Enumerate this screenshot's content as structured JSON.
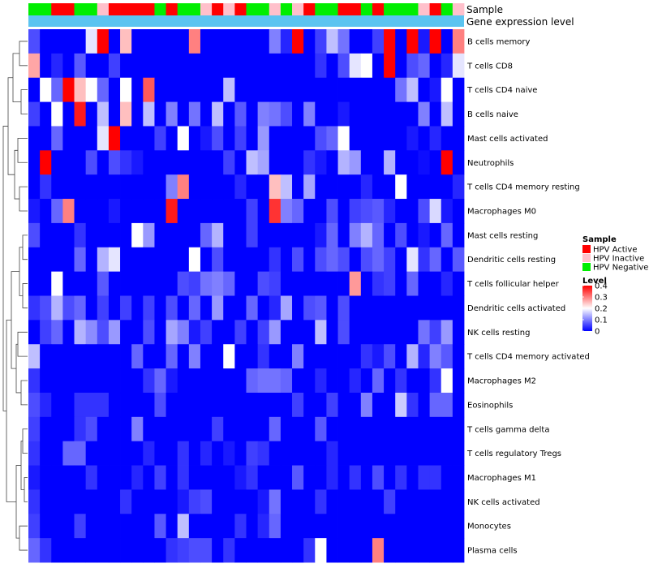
{
  "chart_data": {
    "type": "heatmap",
    "annotations": [
      {
        "label": "Sample",
        "values": [
          "N",
          "N",
          "A",
          "A",
          "N",
          "N",
          "I",
          "A",
          "A",
          "A",
          "A",
          "N",
          "A",
          "N",
          "N",
          "I",
          "A",
          "I",
          "A",
          "N",
          "N",
          "I",
          "N",
          "I",
          "A",
          "N",
          "N",
          "A",
          "A",
          "N",
          "A",
          "N",
          "N",
          "N",
          "I",
          "A",
          "N",
          "I"
        ]
      },
      {
        "label": "Gene expression level",
        "color": "#5bc4f0"
      }
    ],
    "rows": [
      "B cells memory",
      "T cells CD8",
      "T cells CD4 naive",
      "B cells naive",
      "Mast cells activated",
      "Neutrophils",
      "T cells CD4 memory resting",
      "Macrophages M0",
      "Mast cells resting",
      "Dendritic cells resting",
      "T cells follicular helper",
      "Dendritic cells activated",
      "NK cells resting",
      "T cells CD4 memory activated",
      "Macrophages M2",
      "Eosinophils",
      "T cells gamma delta",
      "T cells regulatory  Tregs",
      "Macrophages M1",
      "NK cells activated",
      "Monocytes",
      "Plasma cells"
    ],
    "values": [
      [
        0.06,
        0,
        0,
        0,
        0,
        0.18,
        0.4,
        0,
        0.25,
        0,
        0,
        0,
        0,
        0,
        0.3,
        0,
        0,
        0,
        0,
        0,
        0,
        0.1,
        0.03,
        0.4,
        0,
        0.05,
        0.15,
        0.09,
        0,
        0,
        0.05,
        0.4,
        0,
        0.4,
        0.02,
        0.4,
        0,
        0.3
      ],
      [
        0.27,
        0,
        0.03,
        0,
        0.07,
        0,
        0,
        0.05,
        0,
        0,
        0,
        0,
        0,
        0,
        0,
        0,
        0,
        0,
        0,
        0,
        0,
        0,
        0,
        0,
        0,
        0.04,
        0,
        0.06,
        0.18,
        0.2,
        0,
        0.4,
        0,
        0.06,
        0.08,
        0,
        0.03,
        0.18
      ],
      [
        0,
        0.2,
        0.08,
        0.4,
        0.25,
        0.2,
        0.08,
        0,
        0.2,
        0,
        0.33,
        0,
        0,
        0,
        0,
        0,
        0,
        0.15,
        0,
        0,
        0,
        0,
        0,
        0,
        0,
        0,
        0,
        0,
        0,
        0,
        0,
        0,
        0.09,
        0.15,
        0,
        0.02,
        0.2,
        0
      ],
      [
        0.05,
        0,
        0.2,
        0,
        0.38,
        0,
        0.15,
        0,
        0.25,
        0,
        0.15,
        0,
        0.1,
        0,
        0.09,
        0,
        0.15,
        0,
        0.07,
        0,
        0.1,
        0.09,
        0.06,
        0,
        0.1,
        0,
        0,
        0.02,
        0,
        0,
        0,
        0,
        0,
        0,
        0.1,
        0,
        0.15,
        0
      ],
      [
        0,
        0,
        0.08,
        0,
        0,
        0,
        0.18,
        0.4,
        0,
        0,
        0,
        0.05,
        0,
        0.2,
        0,
        0.02,
        0.06,
        0,
        0.05,
        0,
        0.12,
        0,
        0,
        0,
        0,
        0.06,
        0.08,
        0.2,
        0,
        0,
        0,
        0,
        0,
        0.02,
        0,
        0.03,
        0,
        0
      ],
      [
        0,
        0.4,
        0,
        0,
        0,
        0.06,
        0,
        0.06,
        0.04,
        0.02,
        0,
        0,
        0,
        0,
        0,
        0,
        0,
        0.05,
        0,
        0.15,
        0.13,
        0,
        0,
        0,
        0.04,
        0.02,
        0,
        0.14,
        0.12,
        0,
        0,
        0.14,
        0,
        0,
        0.01,
        0,
        0.4,
        0
      ],
      [
        0,
        0.04,
        0,
        0,
        0,
        0,
        0,
        0,
        0,
        0,
        0,
        0,
        0.1,
        0.3,
        0,
        0,
        0,
        0,
        0.03,
        0,
        0,
        0.25,
        0.15,
        0,
        0.13,
        0,
        0,
        0,
        0,
        0.03,
        0,
        0,
        0.2,
        0,
        0,
        0,
        0,
        0.03
      ],
      [
        0.02,
        0,
        0.08,
        0.3,
        0,
        0,
        0,
        0.02,
        0,
        0,
        0,
        0,
        0.38,
        0,
        0,
        0,
        0,
        0,
        0,
        0.05,
        0,
        0.36,
        0.1,
        0.08,
        0,
        0,
        0.06,
        0,
        0.05,
        0.06,
        0.07,
        0.03,
        0,
        0,
        0.06,
        0.17,
        0.02,
        0
      ],
      [
        0.06,
        0,
        0,
        0,
        0.04,
        0,
        0,
        0,
        0,
        0.2,
        0.12,
        0,
        0,
        0,
        0,
        0.08,
        0.14,
        0,
        0,
        0.05,
        0,
        0,
        0,
        0,
        0,
        0.02,
        0.08,
        0,
        0.1,
        0.14,
        0.08,
        0,
        0.06,
        0,
        0.02,
        0,
        0.08,
        0
      ],
      [
        0,
        0,
        0,
        0,
        0.08,
        0,
        0.14,
        0.18,
        0,
        0,
        0,
        0,
        0,
        0,
        0.2,
        0,
        0.06,
        0,
        0,
        0,
        0,
        0.04,
        0,
        0.06,
        0,
        0.06,
        0.08,
        0.06,
        0,
        0.06,
        0.08,
        0.05,
        0,
        0.18,
        0.04,
        0.08,
        0,
        0.07
      ],
      [
        0,
        0,
        0.2,
        0,
        0,
        0,
        0.07,
        0,
        0,
        0,
        0,
        0,
        0,
        0.06,
        0.05,
        0.09,
        0.1,
        0.08,
        0,
        0,
        0.06,
        0.05,
        0,
        0,
        0,
        0,
        0,
        0,
        0.28,
        0,
        0.04,
        0.05,
        0,
        0.08,
        0,
        0,
        0.03,
        0
      ],
      [
        0.04,
        0.06,
        0.14,
        0.06,
        0.08,
        0,
        0.05,
        0,
        0.05,
        0,
        0.05,
        0,
        0.06,
        0,
        0.08,
        0,
        0.12,
        0,
        0,
        0.08,
        0,
        0.03,
        0.13,
        0,
        0.06,
        0.07,
        0,
        0.06,
        0,
        0,
        0,
        0,
        0,
        0,
        0,
        0,
        0,
        0
      ],
      [
        0,
        0.05,
        0.08,
        0,
        0.14,
        0.11,
        0.06,
        0.12,
        0,
        0,
        0.06,
        0,
        0.13,
        0.1,
        0.02,
        0.05,
        0,
        0,
        0.05,
        0,
        0.05,
        0.12,
        0,
        0,
        0,
        0.15,
        0,
        0.06,
        0,
        0,
        0,
        0,
        0,
        0,
        0.09,
        0.05,
        0.12,
        0
      ],
      [
        0.15,
        0,
        0,
        0,
        0,
        0,
        0,
        0,
        0,
        0.08,
        0,
        0,
        0.08,
        0,
        0.1,
        0,
        0,
        0.2,
        0,
        0,
        0.04,
        0,
        0,
        0.1,
        0,
        0,
        0,
        0,
        0,
        0.04,
        0.02,
        0.06,
        0,
        0.14,
        0.03,
        0.1,
        0.07,
        0
      ],
      [
        0.04,
        0,
        0,
        0,
        0,
        0,
        0,
        0,
        0,
        0,
        0.04,
        0.08,
        0.02,
        0,
        0,
        0,
        0,
        0,
        0,
        0.08,
        0.09,
        0.09,
        0.08,
        0,
        0,
        0.03,
        0,
        0,
        0.03,
        0,
        0.08,
        0,
        0.04,
        0,
        0,
        0.04,
        0.2,
        0
      ],
      [
        0.06,
        0.03,
        0,
        0,
        0.04,
        0.04,
        0.04,
        0,
        0,
        0,
        0,
        0.06,
        0,
        0,
        0,
        0,
        0,
        0,
        0,
        0,
        0,
        0,
        0,
        0.05,
        0,
        0,
        0.05,
        0,
        0,
        0.1,
        0,
        0,
        0.16,
        0.04,
        0,
        0.08,
        0.08,
        0
      ],
      [
        0.05,
        0,
        0,
        0,
        0.04,
        0.06,
        0,
        0,
        0,
        0.1,
        0,
        0,
        0,
        0,
        0,
        0,
        0.05,
        0,
        0,
        0,
        0,
        0.08,
        0,
        0,
        0,
        0.07,
        0,
        0,
        0,
        0,
        0,
        0,
        0,
        0,
        0,
        0,
        0,
        0
      ],
      [
        0.04,
        0,
        0,
        0.08,
        0.08,
        0,
        0,
        0,
        0,
        0,
        0.03,
        0,
        0,
        0.04,
        0,
        0.03,
        0,
        0.02,
        0,
        0.05,
        0.04,
        0,
        0,
        0,
        0,
        0,
        0.03,
        0,
        0,
        0,
        0,
        0,
        0,
        0,
        0,
        0,
        0,
        0
      ],
      [
        0.02,
        0,
        0,
        0,
        0,
        0.04,
        0,
        0,
        0,
        0.03,
        0,
        0.05,
        0,
        0.04,
        0,
        0,
        0,
        0,
        0.02,
        0.04,
        0,
        0,
        0,
        0.07,
        0,
        0,
        0.03,
        0,
        0.04,
        0,
        0.06,
        0,
        0.04,
        0,
        0.04,
        0.04,
        0,
        0
      ],
      [
        0.04,
        0,
        0,
        0,
        0,
        0,
        0,
        0,
        0.04,
        0,
        0,
        0,
        0,
        0.02,
        0.05,
        0.06,
        0,
        0,
        0,
        0,
        0.02,
        0.09,
        0,
        0,
        0,
        0.04,
        0,
        0,
        0,
        0,
        0,
        0.05,
        0,
        0,
        0,
        0,
        0,
        0
      ],
      [
        0.05,
        0,
        0,
        0,
        0.05,
        0,
        0,
        0,
        0,
        0,
        0,
        0.07,
        0,
        0.15,
        0,
        0,
        0,
        0,
        0.04,
        0,
        0.03,
        0.08,
        0,
        0,
        0,
        0,
        0,
        0,
        0,
        0,
        0,
        0,
        0,
        0,
        0,
        0,
        0,
        0
      ],
      [
        0.08,
        0.04,
        0,
        0,
        0,
        0,
        0,
        0,
        0,
        0,
        0,
        0,
        0.04,
        0.05,
        0.06,
        0.06,
        0,
        0.04,
        0,
        0,
        0,
        0,
        0,
        0,
        0.04,
        0.2,
        0,
        0,
        0,
        0,
        0.3,
        0,
        0,
        0,
        0,
        0,
        0,
        0
      ]
    ],
    "legends": [
      {
        "title": "Sample",
        "items": [
          {
            "key": "A",
            "label": "HPV Active",
            "color": "#ff0000"
          },
          {
            "key": "I",
            "label": "HPV Inactive",
            "color": "#ffc0cb"
          },
          {
            "key": "N",
            "label": "HPV Negative",
            "color": "#00ee00"
          }
        ]
      },
      {
        "title": "Level",
        "ticks": [
          "0.4",
          "0.3",
          "0.2",
          "0.1",
          "0"
        ],
        "range": [
          0,
          0.4
        ],
        "colors": {
          "low": "#0000ff",
          "mid": "#ffffff",
          "high": "#ff0000"
        }
      }
    ]
  }
}
